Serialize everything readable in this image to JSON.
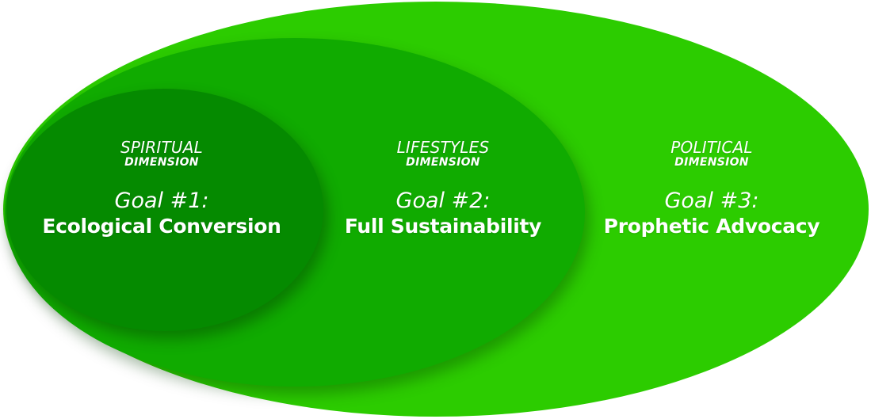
{
  "colors": {
    "outer": "#2ccc00",
    "middle": "#10ab00",
    "inner": "#058a00",
    "text": "#ffffff"
  },
  "dimensions": [
    {
      "name": "SPIRITUAL",
      "word": "DIMENSION",
      "goal": "Goal #1:",
      "title": "Ecological Conversion"
    },
    {
      "name": "LIFESTYLES",
      "word": "DIMENSION",
      "goal": "Goal #2:",
      "title": "Full Sustainability"
    },
    {
      "name": "POLITICAL",
      "word": "DIMENSION",
      "goal": "Goal #3:",
      "title": "Prophetic Advocacy"
    }
  ]
}
